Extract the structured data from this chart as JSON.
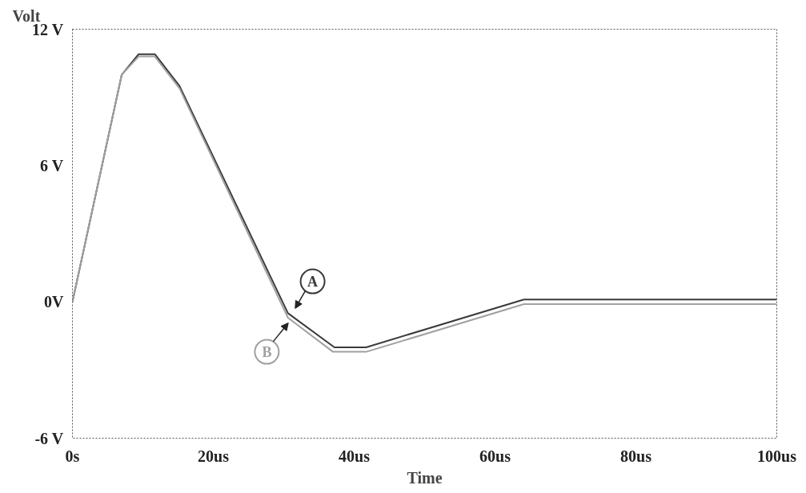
{
  "chart_data": {
    "type": "line",
    "xlabel": "Time",
    "ylabel": "Volt",
    "xlim": [
      0,
      100
    ],
    "ylim": [
      -6,
      12
    ],
    "xticks": [
      {
        "value": 0,
        "label": "0s"
      },
      {
        "value": 20,
        "label": "20us"
      },
      {
        "value": 40,
        "label": "40us"
      },
      {
        "value": 60,
        "label": "60us"
      },
      {
        "value": 80,
        "label": "80us"
      },
      {
        "value": 100,
        "label": "100us"
      }
    ],
    "yticks": [
      {
        "value": -6,
        "label": "-6 V"
      },
      {
        "value": 0,
        "label": "0V"
      },
      {
        "value": 6,
        "label": "6 V"
      },
      {
        "value": 12,
        "label": "12 V"
      }
    ],
    "grid": false,
    "marker": "none",
    "line_style": "solid",
    "series": [
      {
        "name": "A",
        "color": "#3a3a3a",
        "x": [
          0,
          7,
          9.4,
          11.7,
          15.2,
          30.6,
          37.2,
          41.7,
          64.1,
          100
        ],
        "values": [
          0,
          10.0,
          10.9,
          10.9,
          9.5,
          -0.5,
          -2.0,
          -2.0,
          0.1,
          0.1
        ]
      },
      {
        "name": "B",
        "color": "#a0a0a0",
        "x": [
          0,
          7,
          9.4,
          11.7,
          15.2,
          30.6,
          37.0,
          41.7,
          64.1,
          100
        ],
        "values": [
          0,
          10.0,
          10.8,
          10.8,
          9.4,
          -0.7,
          -2.2,
          -2.2,
          -0.1,
          -0.1
        ]
      }
    ]
  }
}
